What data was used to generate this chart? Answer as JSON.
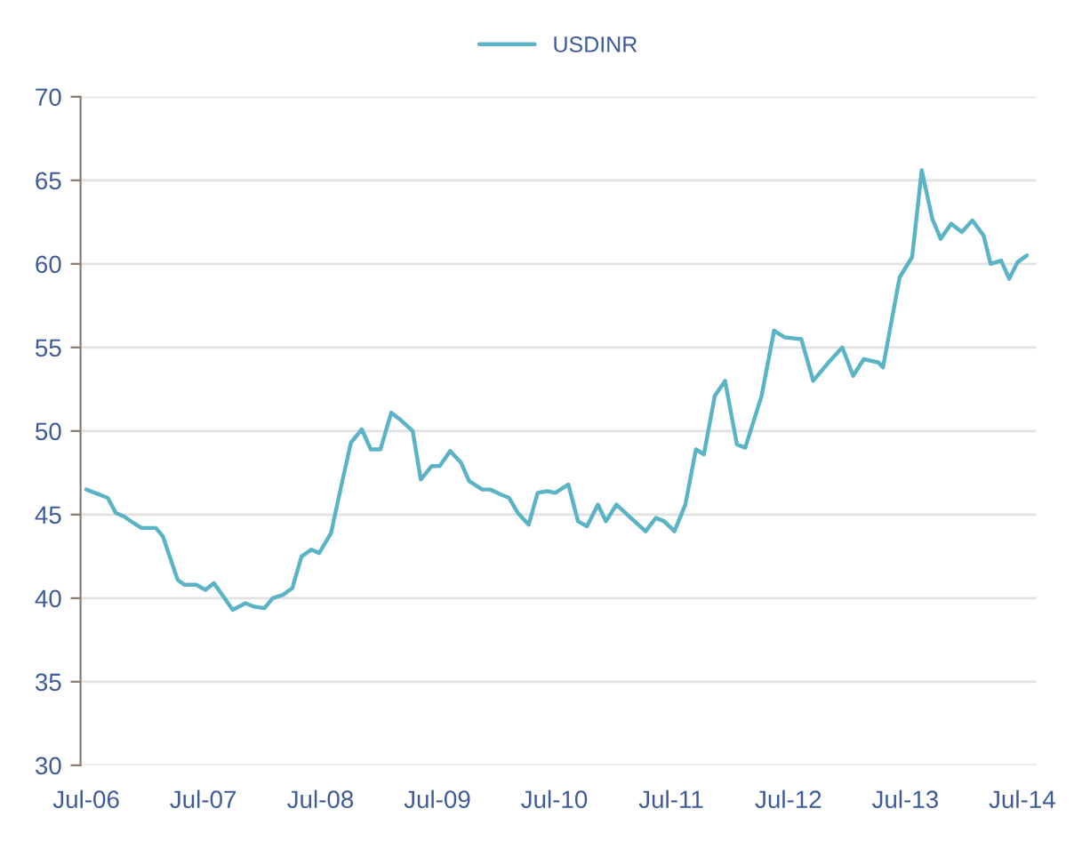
{
  "chart_data": {
    "type": "line",
    "x": [
      "2006-07-01",
      "2006-09-06",
      "2006-10-01",
      "2006-10-26",
      "2006-11-25",
      "2006-12-20",
      "2007-02-03",
      "2007-02-25",
      "2007-03-20",
      "2007-04-12",
      "2007-05-03",
      "2007-06-09",
      "2007-07-08",
      "2007-08-03",
      "2007-09-02",
      "2007-10-01",
      "2007-11-10",
      "2007-12-05",
      "2008-01-08",
      "2008-02-03",
      "2008-03-06",
      "2008-04-04",
      "2008-05-03",
      "2008-06-02",
      "2008-06-27",
      "2008-08-03",
      "2008-09-06",
      "2008-10-04",
      "2008-11-07",
      "2008-12-05",
      "2009-01-04",
      "2009-02-07",
      "2009-03-06",
      "2009-04-15",
      "2009-05-10",
      "2009-06-13",
      "2009-07-08",
      "2009-08-10",
      "2009-09-13",
      "2009-10-08",
      "2009-11-18",
      "2009-12-13",
      "2010-01-15",
      "2010-02-10",
      "2010-03-09",
      "2010-04-12",
      "2010-05-10",
      "2010-06-09",
      "2010-07-04",
      "2010-08-14",
      "2010-09-13",
      "2010-10-11",
      "2010-11-14",
      "2010-12-09",
      "2011-01-11",
      "2011-02-25",
      "2011-04-12",
      "2011-05-14",
      "2011-06-09",
      "2011-07-11",
      "2011-08-14",
      "2011-09-16",
      "2011-10-11",
      "2011-11-14",
      "2011-12-16",
      "2012-01-22",
      "2012-02-17",
      "2012-04-08",
      "2012-05-17",
      "2012-06-20",
      "2012-08-10",
      "2012-09-16",
      "2012-11-03",
      "2012-12-16",
      "2013-01-19",
      "2013-02-21",
      "2013-04-08",
      "2013-04-22",
      "2013-06-13",
      "2013-07-22",
      "2013-08-21",
      "2013-09-23",
      "2013-10-19",
      "2013-11-21",
      "2013-12-24",
      "2014-01-26",
      "2014-03-02",
      "2014-03-24",
      "2014-04-26",
      "2014-05-21",
      "2014-06-16",
      "2014-07-15"
    ],
    "series": [
      {
        "name": "USDINR",
        "color": "#5ab4c6",
        "values": [
          46.5,
          46.0,
          45.1,
          44.9,
          44.5,
          44.2,
          44.2,
          43.7,
          42.4,
          41.1,
          40.8,
          40.8,
          40.5,
          40.9,
          40.1,
          39.3,
          39.7,
          39.5,
          39.4,
          40.0,
          40.2,
          40.6,
          42.5,
          42.9,
          42.7,
          43.9,
          46.9,
          49.3,
          50.1,
          48.9,
          48.9,
          51.1,
          50.7,
          50.0,
          47.1,
          47.9,
          47.9,
          48.8,
          48.1,
          47.0,
          46.5,
          46.5,
          46.2,
          46.0,
          45.1,
          44.4,
          46.3,
          46.4,
          46.3,
          46.8,
          44.6,
          44.3,
          45.6,
          44.6,
          45.6,
          44.8,
          44.0,
          44.8,
          44.6,
          44.0,
          45.6,
          48.9,
          48.6,
          52.1,
          53.0,
          49.2,
          49.0,
          52.1,
          56.0,
          55.6,
          55.5,
          53.0,
          54.1,
          55.0,
          53.3,
          54.3,
          54.1,
          53.8,
          59.2,
          60.4,
          65.6,
          62.7,
          61.5,
          62.4,
          61.9,
          62.6,
          61.7,
          60.0,
          60.2,
          59.1,
          60.1,
          60.5
        ]
      }
    ],
    "xlim": [
      "2006-06-13",
      "2014-08-14"
    ],
    "xticks": [
      {
        "value": "2006-07",
        "label": "Jul-06"
      },
      {
        "value": "2007-07",
        "label": "Jul-07"
      },
      {
        "value": "2008-07",
        "label": "Jul-08"
      },
      {
        "value": "2009-07",
        "label": "Jul-09"
      },
      {
        "value": "2010-07",
        "label": "Jul-10"
      },
      {
        "value": "2011-07",
        "label": "Jul-11"
      },
      {
        "value": "2012-07",
        "label": "Jul-12"
      },
      {
        "value": "2013-07",
        "label": "Jul-13"
      },
      {
        "value": "2014-07",
        "label": "Jul-14"
      }
    ],
    "ylim": [
      30,
      70
    ],
    "yticks": [
      30,
      35,
      40,
      45,
      50,
      55,
      60,
      65,
      70
    ],
    "grid": "y",
    "legend": "top",
    "marker": "none",
    "line_style": "solid"
  }
}
